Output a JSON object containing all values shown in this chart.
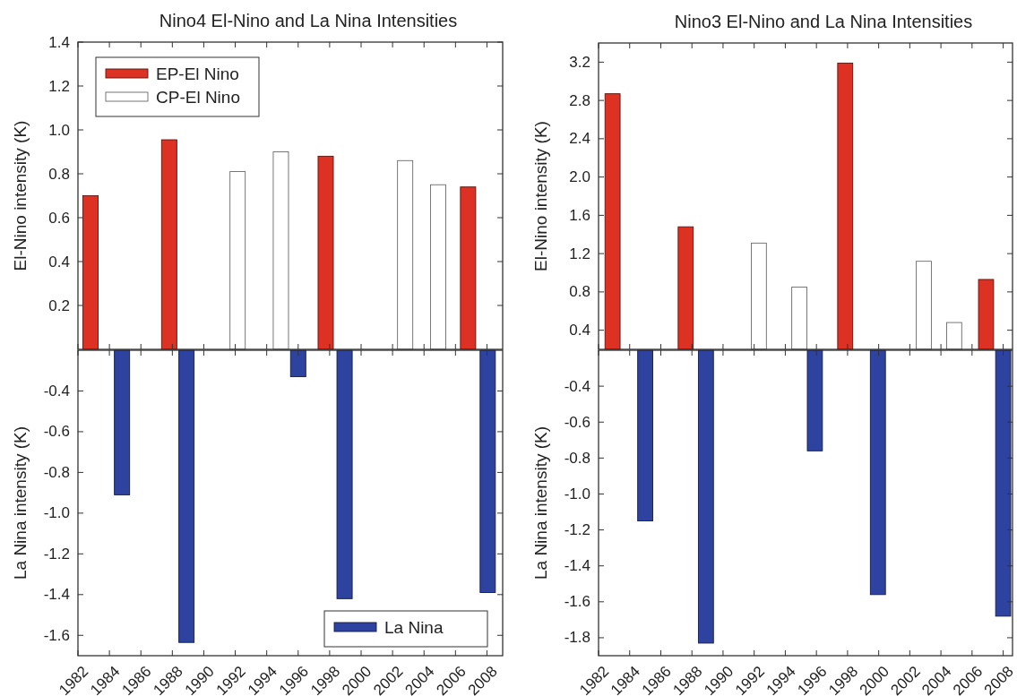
{
  "chart_data": [
    {
      "type": "bar",
      "title": "Nino4 El-Nino and La Nina Intensities",
      "ylabel": "El-Nino intensity (K)",
      "xlim": [
        1982,
        2009
      ],
      "xticks": [
        1982,
        1984,
        1986,
        1988,
        1990,
        1992,
        1994,
        1996,
        1998,
        2000,
        2002,
        2004,
        2006,
        2008
      ],
      "ylim": [
        0,
        1.4
      ],
      "yticks": [
        0.2,
        0.4,
        0.6,
        0.8,
        {
          "value": 1.0,
          "label": "1.0"
        },
        1.2,
        1.4
      ],
      "tick_labels": "y",
      "legend": "top left",
      "series": [
        {
          "name": "EP-El Nino",
          "color": "#dc3123",
          "x": [
            1982.8,
            1987.8,
            1997.75,
            2006.8
          ],
          "values": [
            0.7,
            0.955,
            0.88,
            0.74
          ]
        },
        {
          "name": "CP-El Nino",
          "color": "#ffffff",
          "x": [
            1992.15,
            1994.9,
            2002.8,
            2004.9
          ],
          "values": [
            0.81,
            0.9,
            0.86,
            0.75
          ]
        }
      ]
    },
    {
      "type": "bar",
      "ylabel": "La Nina intensity (K)",
      "xlim": [
        1982,
        2009
      ],
      "xticks": [
        1982,
        1984,
        1986,
        1988,
        1990,
        1992,
        1994,
        1996,
        1998,
        2000,
        2002,
        2004,
        2006,
        2008
      ],
      "ylim": [
        -1.7,
        -0.2
      ],
      "yticks": [
        -0.4,
        -0.6,
        -0.8,
        {
          "value": -1.0,
          "label": "-1.0"
        },
        -1.2,
        -1.4,
        -1.6
      ],
      "legend": "bottom right",
      "series": [
        {
          "name": "La Nina",
          "color": "#2e43a0",
          "x": [
            1984.8,
            1988.9,
            1996.0,
            1998.95,
            2008.05
          ],
          "values": [
            -0.91,
            -1.635,
            -0.33,
            -1.42,
            -1.39
          ]
        }
      ]
    },
    {
      "type": "bar",
      "title": "Nino3 El-Nino and La Nina Intensities",
      "ylabel": "El-Nino intensity (K)",
      "xlim": [
        1982,
        2008.6
      ],
      "xticks": [
        1982,
        1984,
        1986,
        1988,
        1990,
        1992,
        1994,
        1996,
        1998,
        2000,
        2002,
        2004,
        2006,
        2008
      ],
      "ylim": [
        0.2,
        3.4
      ],
      "yticks": [
        0.4,
        0.8,
        1.2,
        1.6,
        {
          "value": 2.0,
          "label": "2.0"
        },
        2.4,
        2.8,
        3.2
      ],
      "tick_labels": "y",
      "series": [
        {
          "color": "#dc3123",
          "x": [
            1982.9,
            1987.6,
            1997.85,
            2006.9
          ],
          "values": [
            2.87,
            1.48,
            3.19,
            0.93
          ]
        },
        {
          "color": "#ffffff",
          "x": [
            1992.3,
            1994.9,
            2002.9,
            2004.85
          ],
          "values": [
            1.31,
            0.85,
            1.12,
            0.48
          ]
        }
      ]
    },
    {
      "type": "bar",
      "ylabel": "La Nina intensity (K)",
      "xlim": [
        1982,
        2008.6
      ],
      "xticks": [
        1982,
        1984,
        1986,
        1988,
        1990,
        1992,
        1994,
        1996,
        1998,
        2000,
        2002,
        2004,
        2006,
        2008
      ],
      "ylim": [
        -1.9,
        -0.2
      ],
      "yticks": [
        -0.4,
        -0.6,
        -0.8,
        {
          "value": -1.0,
          "label": "-1.0"
        },
        -1.2,
        -1.4,
        -1.6,
        -1.8
      ],
      "series": [
        {
          "color": "#2e43a0",
          "x": [
            1985.0,
            1988.9,
            1995.9,
            1999.95,
            2008.0
          ],
          "values": [
            -1.15,
            -1.83,
            -0.76,
            -1.56,
            -1.68
          ]
        }
      ]
    }
  ]
}
